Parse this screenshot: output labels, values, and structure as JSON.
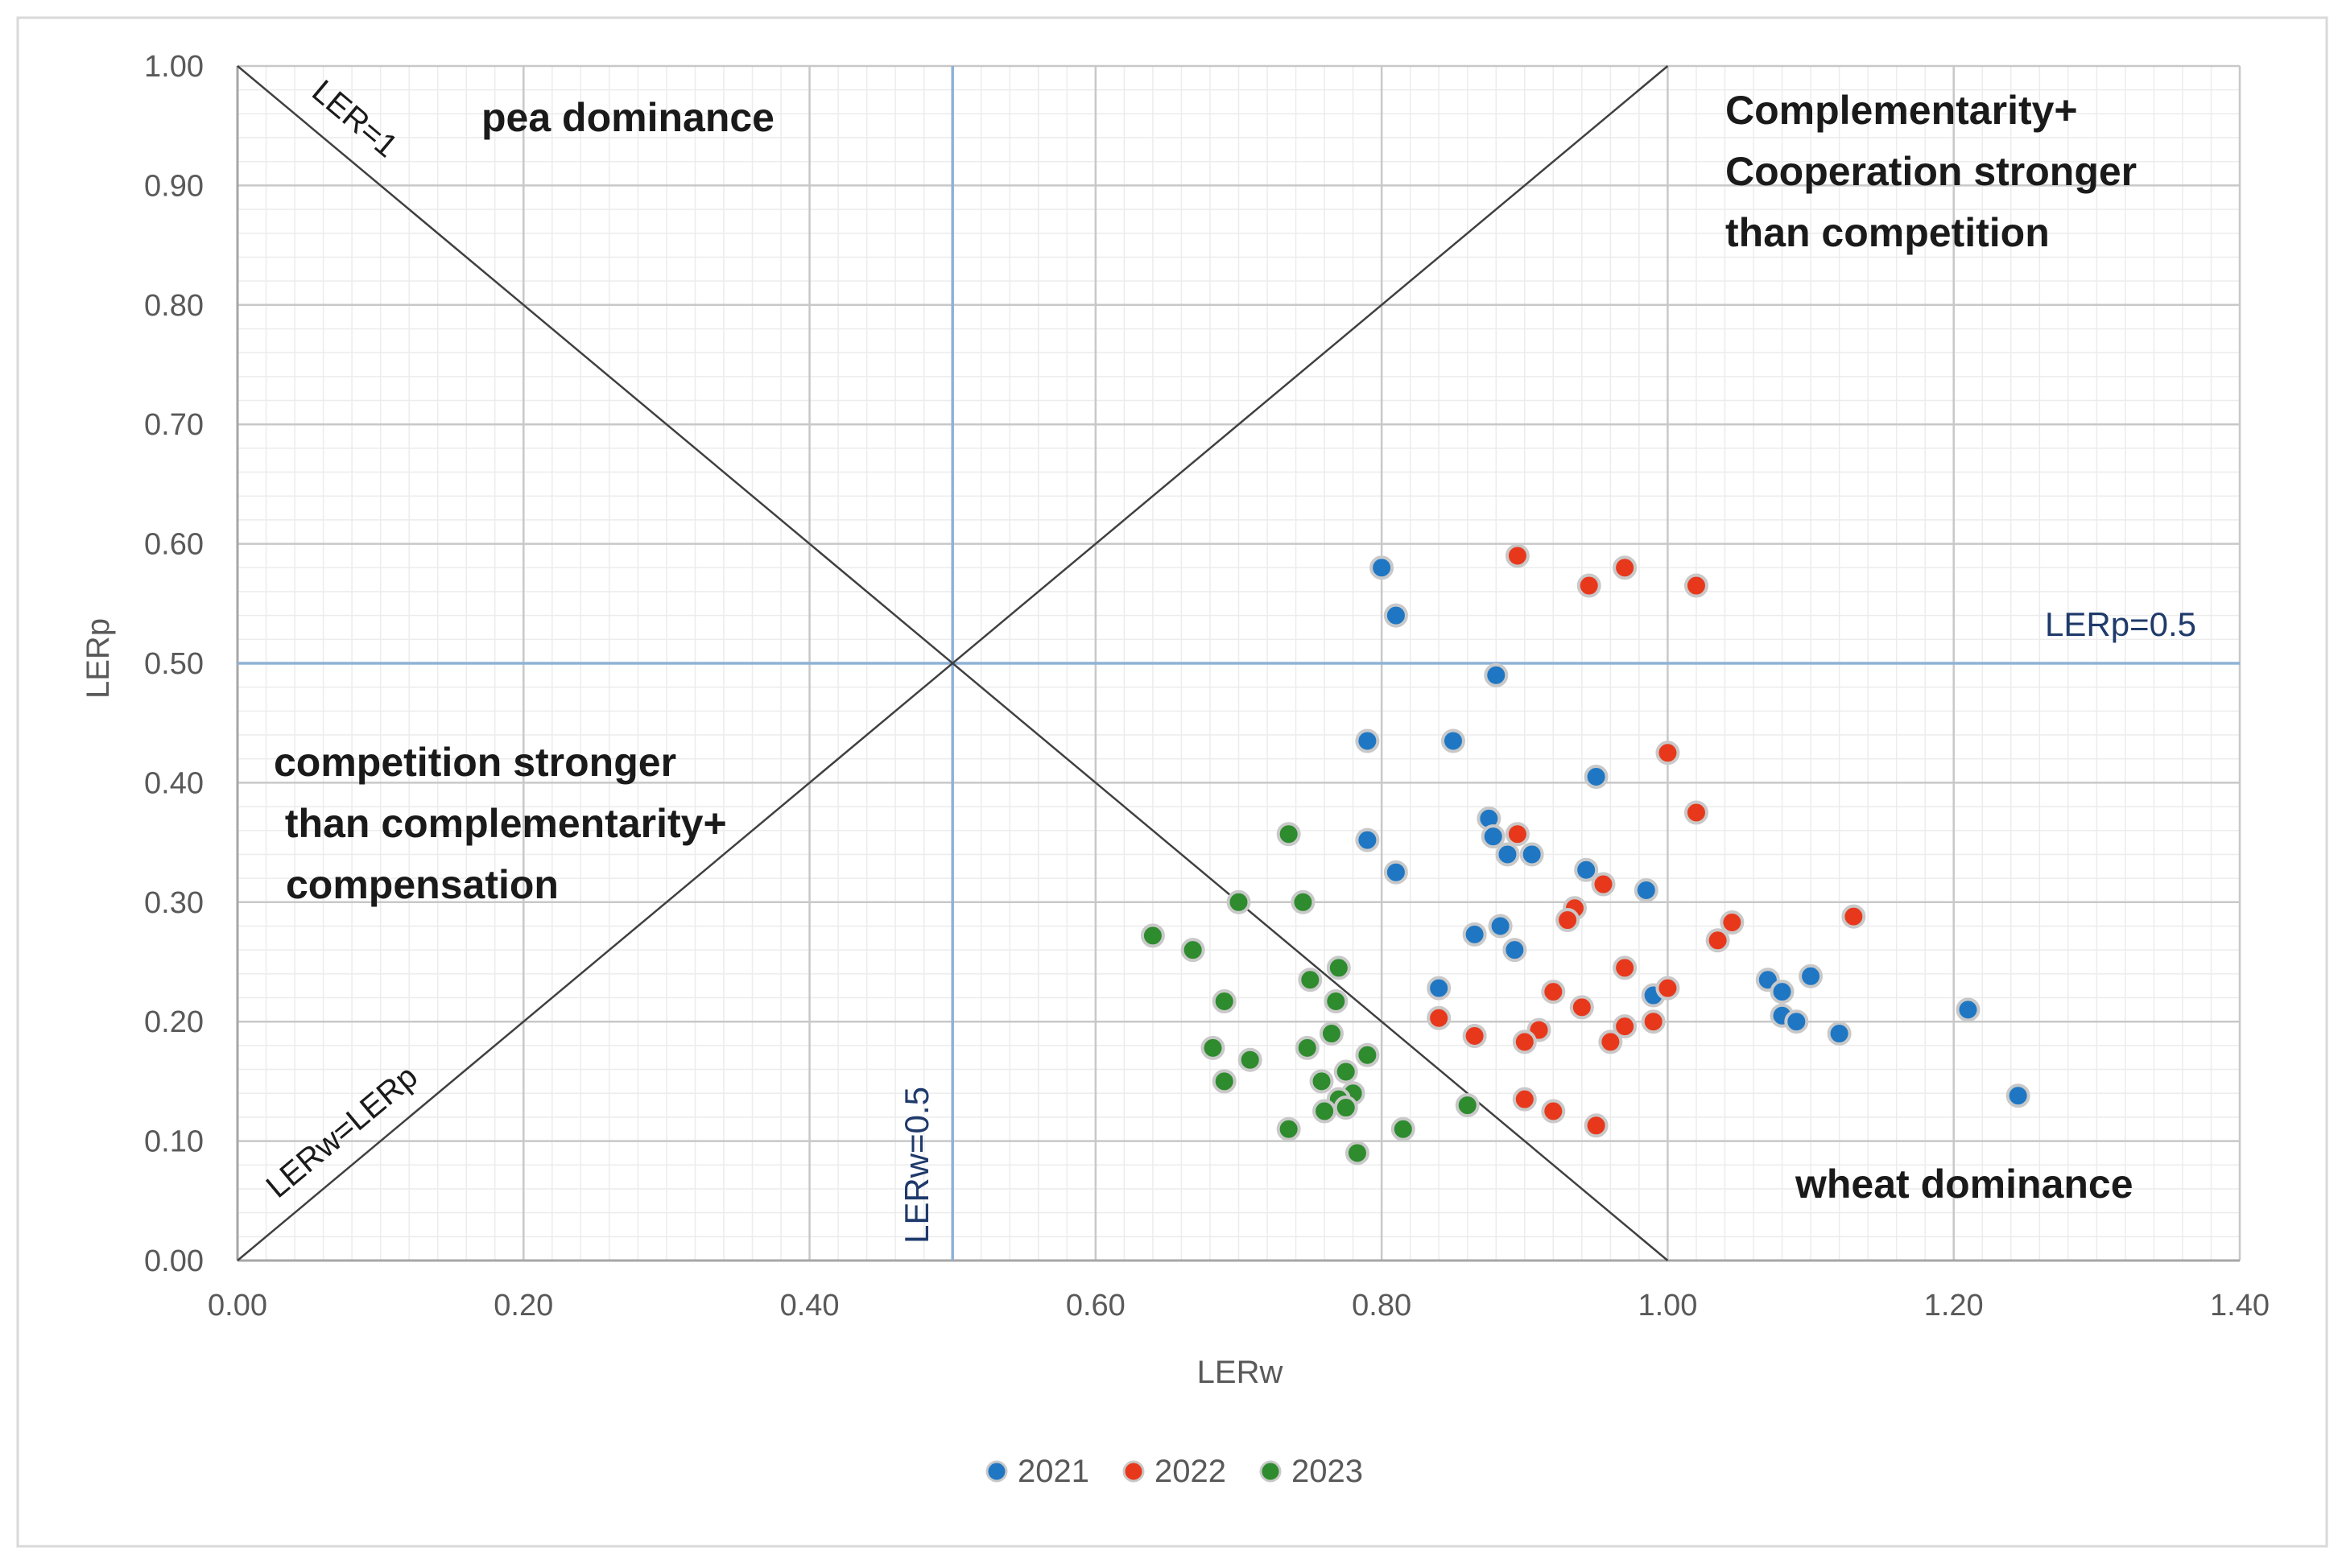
{
  "chart_data": {
    "type": "scatter",
    "xlabel": "LERw",
    "ylabel": "LERp",
    "xlim": [
      0,
      1.4
    ],
    "ylim": [
      0,
      1.0
    ],
    "x_ticks": [
      "0.00",
      "0.20",
      "0.40",
      "0.60",
      "0.80",
      "1.00",
      "1.20",
      "1.40"
    ],
    "y_ticks": [
      "0.00",
      "0.10",
      "0.20",
      "0.30",
      "0.40",
      "0.50",
      "0.60",
      "0.70",
      "0.80",
      "0.90",
      "1.00"
    ],
    "grid": true,
    "legend_position": "bottom",
    "reference_lines": [
      {
        "name": "LERp=0.5",
        "orientation": "horizontal",
        "value": 0.5,
        "color": "#8fb2d6"
      },
      {
        "name": "LERw=0.5",
        "orientation": "vertical",
        "value": 0.5,
        "color": "#8fb2d6"
      },
      {
        "name": "LER=1",
        "from": [
          0,
          1
        ],
        "to": [
          1,
          0
        ],
        "color": "#404040"
      },
      {
        "name": "LERw=LERp",
        "from": [
          0,
          0
        ],
        "to": [
          1,
          1
        ],
        "color": "#404040"
      }
    ],
    "annotations": {
      "pea_dominance": "pea dominance",
      "complementarity_1": "Complementarity+",
      "complementarity_2": "Cooperation stronger",
      "complementarity_3": "than competition",
      "competition_1": "competition stronger",
      "competition_2": " than complementarity+",
      "competition_3": "compensation",
      "wheat_dominance": "wheat dominance",
      "ler1": "LER=1",
      "lerw_lerp": "LERw=LERp",
      "lerp05": "LERp=0.5",
      "lerw05": "LERw=0.5"
    },
    "series": [
      {
        "name": "2021",
        "color": "#1f77c4",
        "points": [
          [
            0.8,
            0.58
          ],
          [
            0.81,
            0.54
          ],
          [
            0.88,
            0.49
          ],
          [
            0.79,
            0.435
          ],
          [
            0.85,
            0.435
          ],
          [
            0.95,
            0.405
          ],
          [
            0.875,
            0.37
          ],
          [
            0.878,
            0.355
          ],
          [
            0.79,
            0.352
          ],
          [
            0.888,
            0.34
          ],
          [
            0.905,
            0.34
          ],
          [
            0.81,
            0.325
          ],
          [
            0.943,
            0.327
          ],
          [
            0.985,
            0.31
          ],
          [
            0.883,
            0.28
          ],
          [
            0.865,
            0.273
          ],
          [
            0.893,
            0.26
          ],
          [
            0.84,
            0.228
          ],
          [
            0.99,
            0.222
          ],
          [
            1.07,
            0.235
          ],
          [
            1.1,
            0.238
          ],
          [
            1.08,
            0.225
          ],
          [
            1.08,
            0.205
          ],
          [
            1.09,
            0.2
          ],
          [
            1.12,
            0.19
          ],
          [
            1.21,
            0.21
          ],
          [
            1.245,
            0.138
          ]
        ]
      },
      {
        "name": "2022",
        "color": "#e8381c",
        "points": [
          [
            0.895,
            0.59
          ],
          [
            0.97,
            0.58
          ],
          [
            0.945,
            0.565
          ],
          [
            1.02,
            0.565
          ],
          [
            1.0,
            0.425
          ],
          [
            1.02,
            0.375
          ],
          [
            0.895,
            0.357
          ],
          [
            0.955,
            0.315
          ],
          [
            0.935,
            0.295
          ],
          [
            0.93,
            0.285
          ],
          [
            1.045,
            0.283
          ],
          [
            1.035,
            0.268
          ],
          [
            1.13,
            0.288
          ],
          [
            0.97,
            0.245
          ],
          [
            0.92,
            0.225
          ],
          [
            1.0,
            0.228
          ],
          [
            0.94,
            0.212
          ],
          [
            0.84,
            0.203
          ],
          [
            0.91,
            0.193
          ],
          [
            0.97,
            0.196
          ],
          [
            0.99,
            0.2
          ],
          [
            0.865,
            0.188
          ],
          [
            0.9,
            0.183
          ],
          [
            0.96,
            0.183
          ],
          [
            0.9,
            0.135
          ],
          [
            0.92,
            0.125
          ],
          [
            0.95,
            0.113
          ]
        ]
      },
      {
        "name": "2023",
        "color": "#2e8b2e",
        "points": [
          [
            0.735,
            0.357
          ],
          [
            0.7,
            0.3
          ],
          [
            0.745,
            0.3
          ],
          [
            0.64,
            0.272
          ],
          [
            0.668,
            0.26
          ],
          [
            0.77,
            0.245
          ],
          [
            0.75,
            0.235
          ],
          [
            0.69,
            0.217
          ],
          [
            0.768,
            0.217
          ],
          [
            0.765,
            0.19
          ],
          [
            0.682,
            0.178
          ],
          [
            0.748,
            0.178
          ],
          [
            0.79,
            0.172
          ],
          [
            0.708,
            0.168
          ],
          [
            0.775,
            0.158
          ],
          [
            0.758,
            0.15
          ],
          [
            0.69,
            0.15
          ],
          [
            0.78,
            0.14
          ],
          [
            0.77,
            0.135
          ],
          [
            0.76,
            0.125
          ],
          [
            0.775,
            0.128
          ],
          [
            0.86,
            0.13
          ],
          [
            0.735,
            0.11
          ],
          [
            0.815,
            0.11
          ],
          [
            0.783,
            0.09
          ]
        ]
      }
    ]
  }
}
